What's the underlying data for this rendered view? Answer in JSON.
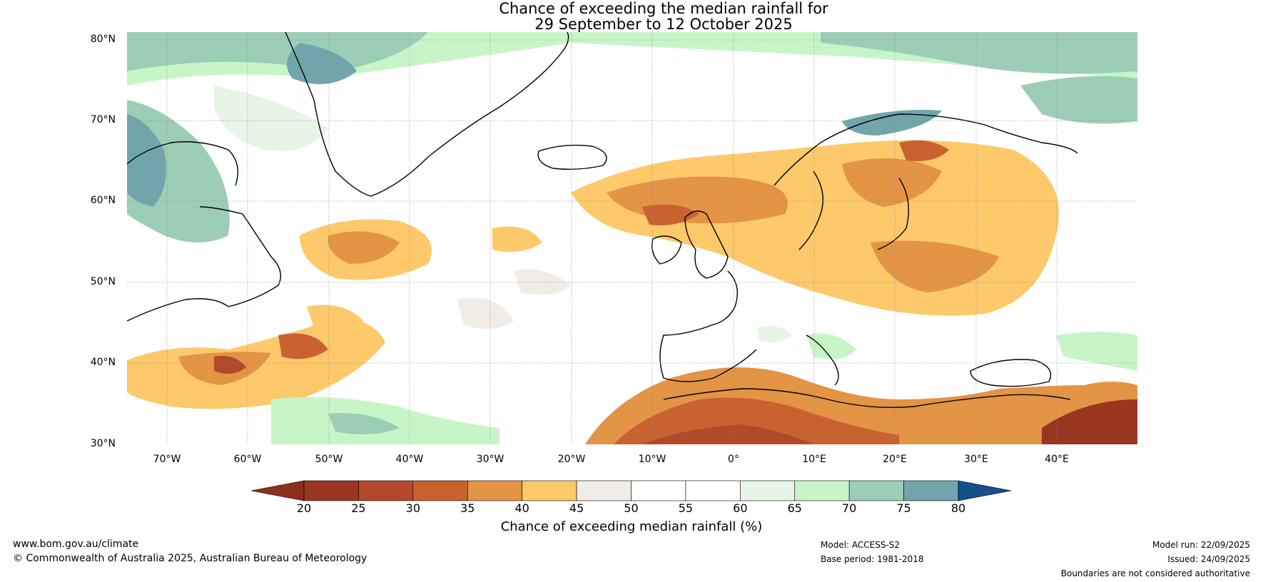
{
  "title": {
    "line1": "Chance of exceeding the median rainfall for",
    "line2": "29 September to 12 October 2025"
  },
  "map": {
    "lat_labels": [
      "80°N",
      "70°N",
      "60°N",
      "50°N",
      "40°N",
      "30°N"
    ],
    "lon_labels": [
      "70°W",
      "60°W",
      "50°W",
      "40°W",
      "30°W",
      "20°W",
      "10°W",
      "0°",
      "10°E",
      "20°E",
      "30°E",
      "40°E"
    ]
  },
  "colorbar": {
    "ticks": [
      "20",
      "25",
      "30",
      "35",
      "40",
      "45",
      "50",
      "55",
      "60",
      "65",
      "70",
      "75",
      "80"
    ],
    "colors": [
      "#9a3520",
      "#b3482a",
      "#c96230",
      "#e39445",
      "#fdc96a",
      "#f1ece6",
      "#ffffff",
      "#ffffff",
      "#e6f5e6",
      "#c8f5c8",
      "#9ccdb6",
      "#70a6ab",
      "#46799a"
    ],
    "under_color": "#8e2f1c",
    "over_color": "#14508b",
    "label": "Chance of exceeding median rainfall (%)"
  },
  "footer": {
    "website": "www.bom.gov.au/climate",
    "copyright": "© Commonwealth of Australia 2025, Australian Bureau of Meteorology",
    "model": "Model: ACCESS-S2",
    "base_period": "Base period: 1981-2018",
    "model_run": "Model run: 22/09/2025",
    "issued": "Issued: 24/09/2025",
    "disclaimer": "Boundaries are not considered authoritative"
  }
}
